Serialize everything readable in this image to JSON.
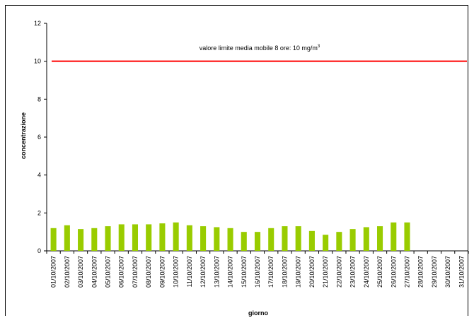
{
  "chart_data": {
    "type": "bar",
    "ylabel": "concentrazione",
    "xlabel": "giorno",
    "ylim": [
      0,
      12
    ],
    "yticks": [
      0,
      2,
      4,
      6,
      8,
      10,
      12
    ],
    "grid": false,
    "bar_color": "#99cc00",
    "limit_color": "#ff0000",
    "limit_value": 10,
    "limit_label": "valore limite media mobile 8 ore: 10  mg/m",
    "limit_label_sup": "3",
    "categories": [
      "01/10/2007",
      "02/10/2007",
      "03/10/2007",
      "04/10/2007",
      "05/10/2007",
      "06/10/2007",
      "07/10/2007",
      "08/10/2007",
      "09/10/2007",
      "10/10/2007",
      "11/10/2007",
      "12/10/2007",
      "13/10/2007",
      "14/10/2007",
      "15/10/2007",
      "16/10/2007",
      "17/10/2007",
      "18/10/2007",
      "19/10/2007",
      "20/10/2007",
      "21/10/2007",
      "22/10/2007",
      "23/10/2007",
      "24/10/2007",
      "25/10/2007",
      "26/10/2007",
      "27/10/2007",
      "28/10/2007",
      "29/10/2007",
      "30/10/2007",
      "31/10/2007"
    ],
    "values": [
      1.2,
      1.35,
      1.15,
      1.2,
      1.3,
      1.4,
      1.4,
      1.4,
      1.45,
      1.5,
      1.35,
      1.3,
      1.25,
      1.2,
      1.0,
      1.0,
      1.2,
      1.3,
      1.3,
      1.05,
      0.85,
      1.0,
      1.15,
      1.25,
      1.3,
      1.5,
      1.5,
      null,
      null,
      null,
      null
    ]
  }
}
